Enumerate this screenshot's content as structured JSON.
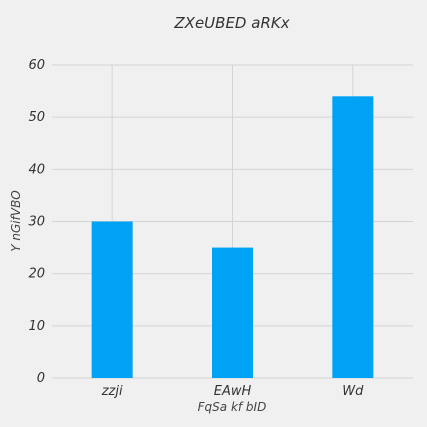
{
  "chart_data": {
    "type": "bar",
    "title": "ZXeUBED aRKx",
    "xlabel": "FqSa kf bID",
    "ylabel": "Y  nGifVBO",
    "categories": [
      "zzji",
      "EAwH",
      "Wd"
    ],
    "values": [
      30,
      25,
      54
    ],
    "ylim": [
      0,
      60
    ],
    "yticks": [
      0,
      10,
      20,
      30,
      40,
      50,
      60
    ],
    "grid": true,
    "legend": "none",
    "colors": {
      "bar": "#00a2f5",
      "background": "#f0f0f0",
      "grid": "#d4d4d4"
    }
  }
}
